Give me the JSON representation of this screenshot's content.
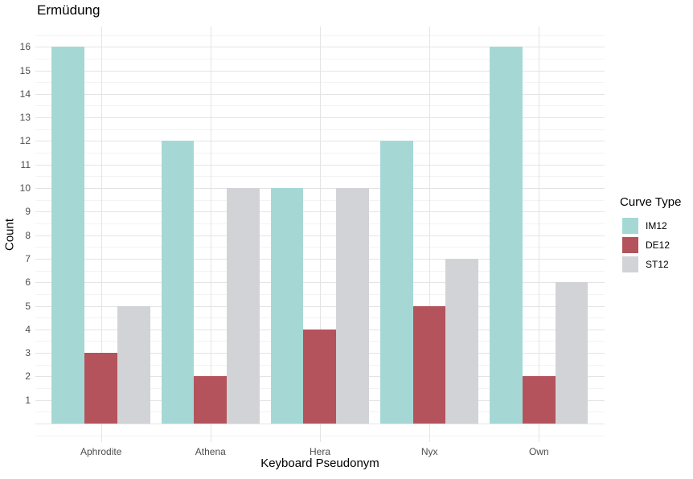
{
  "chart_data": {
    "type": "bar",
    "title": "Ermüdung",
    "xlabel": "Keyboard Pseudonym",
    "ylabel": "Count",
    "legend_title": "Curve Type",
    "legend_position": "right",
    "grid": true,
    "background": "#ffffff",
    "categories": [
      "Aphrodite",
      "Athena",
      "Hera",
      "Nyx",
      "Own"
    ],
    "series": [
      {
        "name": "IM12",
        "color": "#a5d8d5",
        "values": [
          16,
          12,
          10,
          12,
          16
        ]
      },
      {
        "name": "DE12",
        "color": "#b4535b",
        "values": [
          3,
          2,
          4,
          5,
          2
        ]
      },
      {
        "name": "ST12",
        "color": "#d2d3d6",
        "values": [
          5,
          10,
          10,
          7,
          6
        ]
      }
    ],
    "y_ticks": [
      1,
      2,
      3,
      4,
      5,
      6,
      7,
      8,
      9,
      10,
      11,
      12,
      13,
      14,
      15,
      16
    ],
    "ylim": [
      0,
      16.8
    ],
    "gridline_major_color": "#e4e4e4",
    "gridline_minor_color": "#f3f3f3",
    "axis_text_color": "#4d4d4d"
  }
}
